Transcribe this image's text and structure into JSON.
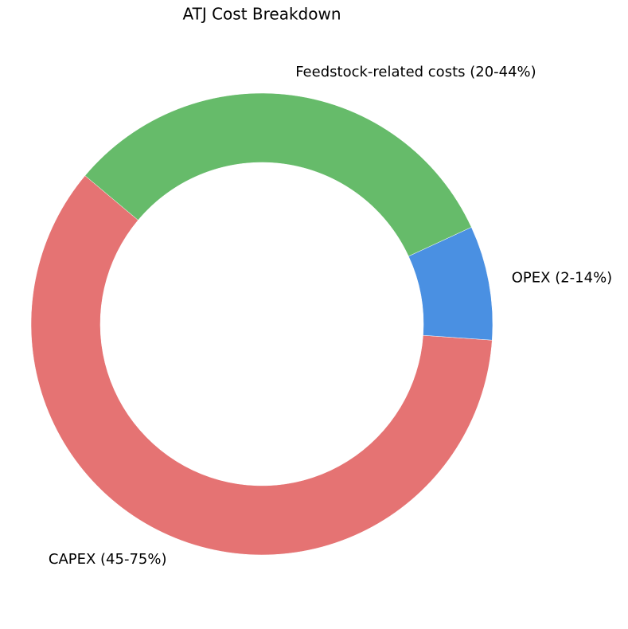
{
  "chart_data": {
    "type": "donut",
    "title": "ATJ Cost Breakdown",
    "categories": [
      "CAPEX (45-75%)",
      "OPEX (2-14%)",
      "Feedstock-related costs (20-44%)"
    ],
    "values": [
      60,
      8,
      32
    ],
    "colors": [
      "#e57373",
      "#4a90e2",
      "#66bb6a"
    ],
    "startangle": 140
  }
}
